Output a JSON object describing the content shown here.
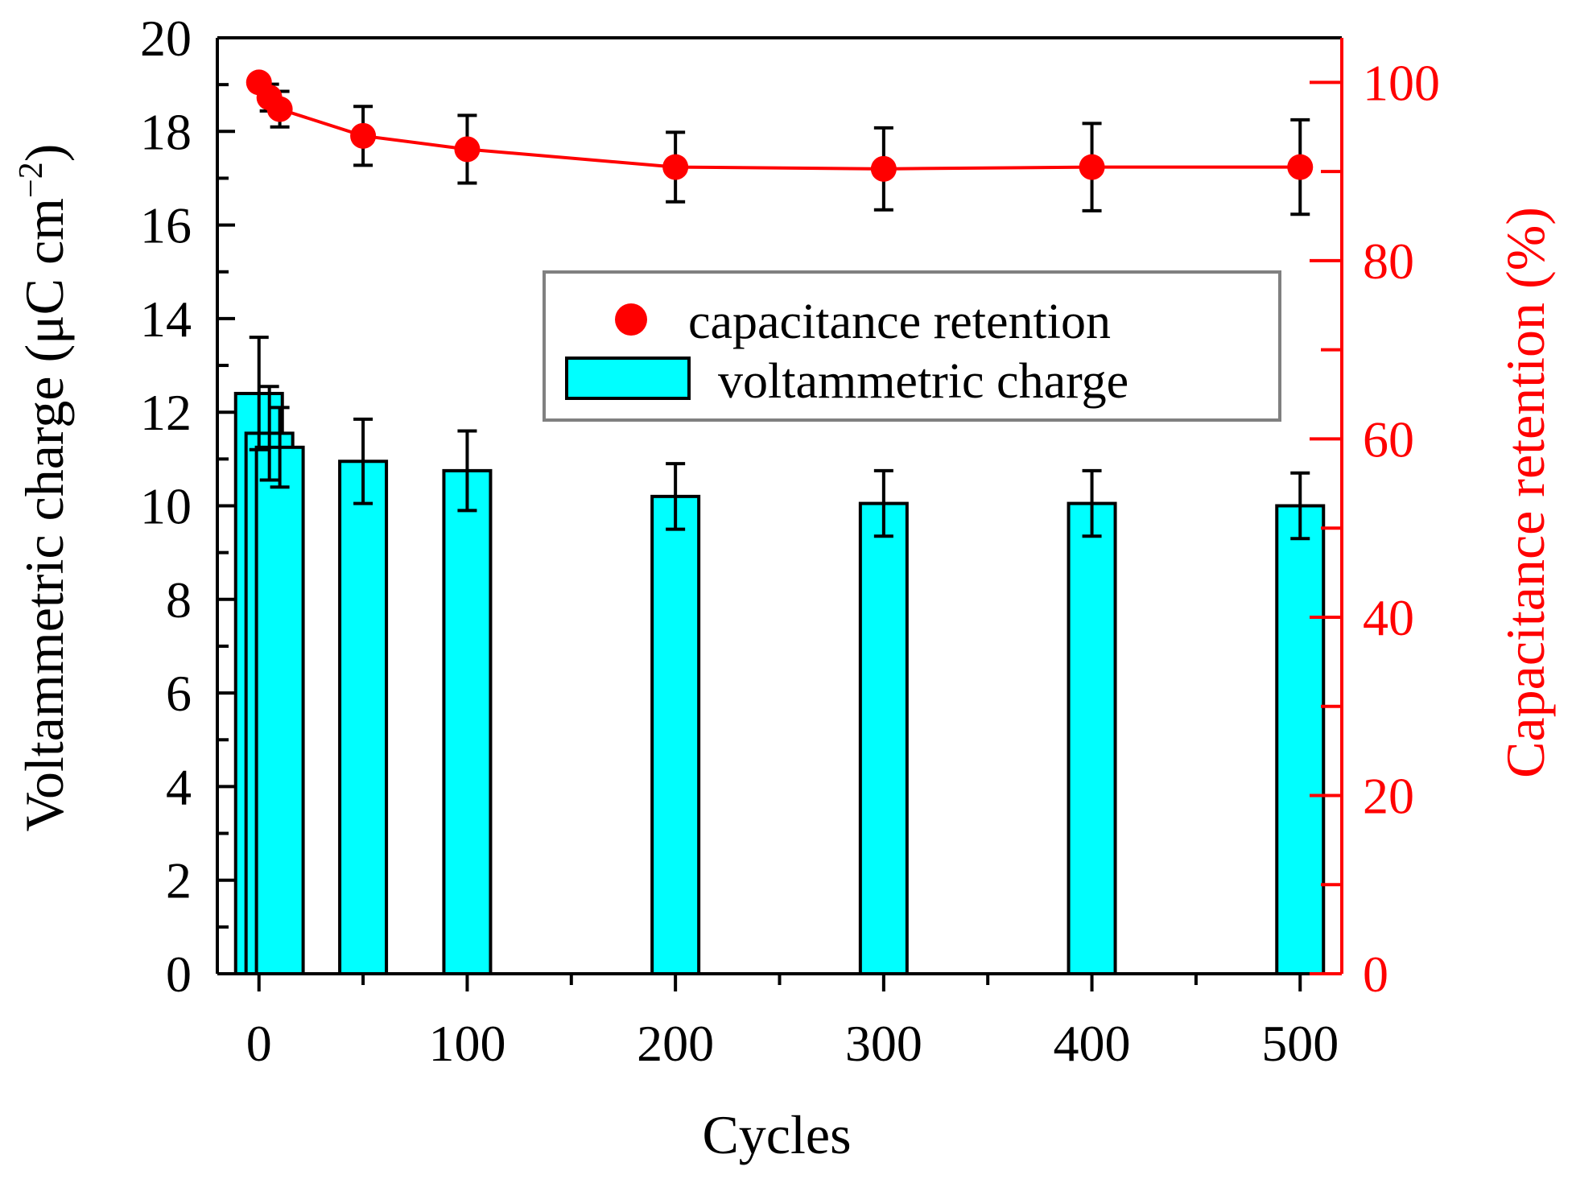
{
  "chart_data": {
    "type": "bar",
    "xlabel": "Cycles",
    "ylabel_left": "Voltammetric charge (μC cm",
    "ylabel_left_sup": "−2",
    "ylabel_left_close": ")",
    "ylabel_right": "Capacitance retention (%)",
    "xlim": [
      -20,
      520
    ],
    "ylim_left": [
      0,
      20
    ],
    "ylim_right": [
      0,
      105
    ],
    "x_ticks": [
      0,
      100,
      200,
      300,
      400,
      500
    ],
    "y_left_ticks": [
      0,
      2,
      4,
      6,
      8,
      10,
      12,
      14,
      16,
      18,
      20
    ],
    "y_right_ticks": [
      0,
      20,
      40,
      60,
      80,
      100
    ],
    "right_axis_color": "#ff0000",
    "bar_color": "#00ffff",
    "marker_color": "#ff0000",
    "legend_position": "center-right",
    "series": [
      {
        "name": "voltammetric charge",
        "type": "bar",
        "axis": "left",
        "x": [
          0,
          5,
          10,
          50,
          100,
          200,
          300,
          400,
          500
        ],
        "values": [
          12.4,
          11.55,
          11.25,
          10.95,
          10.75,
          10.2,
          10.05,
          10.05,
          10.0
        ],
        "errors": [
          1.2,
          1.0,
          0.85,
          0.9,
          0.85,
          0.7,
          0.7,
          0.7,
          0.7
        ]
      },
      {
        "name": "capacitance retention",
        "type": "line",
        "axis": "right",
        "x": [
          0,
          5,
          10,
          50,
          100,
          200,
          300,
          400,
          500
        ],
        "values": [
          100,
          98.3,
          97.0,
          94.0,
          92.5,
          90.5,
          90.3,
          90.5,
          90.5
        ],
        "errors": [
          0,
          1.5,
          2.0,
          3.3,
          3.8,
          3.9,
          4.6,
          4.9,
          5.3
        ]
      }
    ]
  }
}
